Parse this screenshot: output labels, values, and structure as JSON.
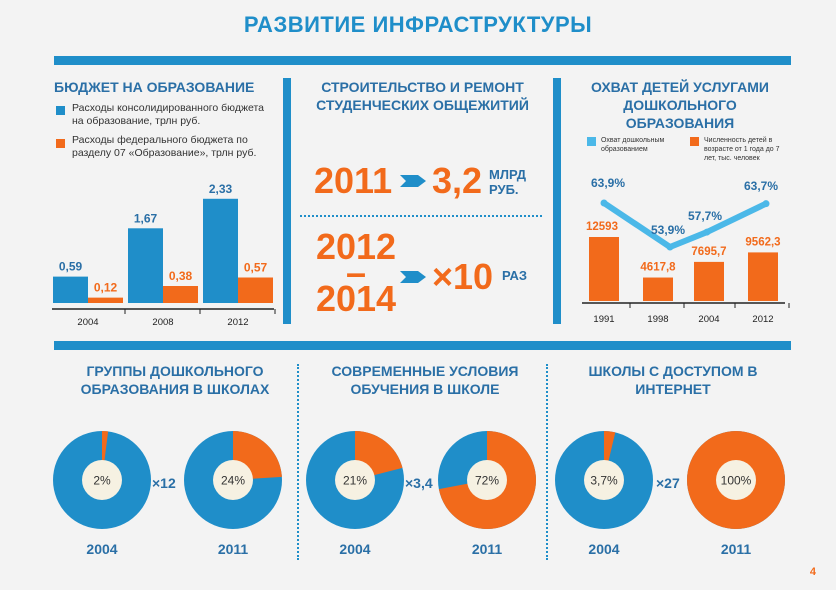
{
  "title": "РАЗВИТИЕ ИНФРАСТРУКТУРЫ",
  "colors": {
    "blue": "#1f8ec9",
    "orange": "#f26a1b",
    "dark_blue": "#2a6fa6"
  },
  "budget": {
    "heading": "БЮДЖЕТ НА ОБРАЗОВАНИЕ",
    "legend": [
      "Расходы консолидированного бюджета на образование, трлн руб.",
      "Расходы федерального бюджета по разделу 07 «Образование», трлн руб."
    ]
  },
  "dorms": {
    "heading": "СТРОИТЕЛЬСТВО И РЕМОНТ СТУДЕНЧЕСКИХ ОБЩЕЖИТИЙ",
    "row1": {
      "year": "2011",
      "value": "3,2",
      "unit_line1": "МЛРД",
      "unit_line2": "РУБ."
    },
    "row2": {
      "year_line1": "2012",
      "dash": "–",
      "year_line2": "2014",
      "value": "×10",
      "unit": "РАЗ"
    }
  },
  "preschool": {
    "heading": "ОХВАТ ДЕТЕЙ УСЛУГАМИ ДОШКОЛЬНОГО ОБРАЗОВАНИЯ",
    "legend": [
      "Охват дошкольным образованием",
      "Численность детей в возрасте от 1 года до 7 лет, тыс. человек"
    ]
  },
  "groups": {
    "heading": "ГРУППЫ ДОШКОЛЬНОГО ОБРАЗОВАНИЯ В ШКОЛАХ",
    "multiplier": "×12"
  },
  "conditions": {
    "heading": "СОВРЕМЕННЫЕ УСЛОВИЯ ОБУЧЕНИЯ В ШКОЛЕ",
    "multiplier": "×3,4"
  },
  "internet": {
    "heading": "ШКОЛЫ С ДОСТУПОМ В ИНТЕРНЕТ",
    "multiplier": "×27"
  },
  "page_number": "4",
  "chart_data": [
    {
      "type": "bar",
      "id": "budget",
      "categories": [
        "2004",
        "2008",
        "2012"
      ],
      "series": [
        {
          "name": "Расходы консолидированного бюджета на образование, трлн руб.",
          "values": [
            0.59,
            1.67,
            2.33
          ],
          "labels": [
            "0,59",
            "1,67",
            "2,33"
          ],
          "color": "#1f8ec9"
        },
        {
          "name": "Расходы федерального бюджета по разделу 07 «Образование», трлн руб.",
          "values": [
            0.12,
            0.38,
            0.57
          ],
          "labels": [
            "0,12",
            "0,38",
            "0,57"
          ],
          "color": "#f26a1b"
        }
      ],
      "ylim": [
        0,
        2.5
      ]
    },
    {
      "type": "bar",
      "id": "preschool-children",
      "categories": [
        "1991",
        "1998",
        "2004",
        "2012"
      ],
      "series": [
        {
          "name": "Численность детей в возрасте от 1 года до 7 лет, тыс. человек",
          "values": [
            12593,
            4617.8,
            7695.7,
            9562.3
          ],
          "labels": [
            "12593",
            "4617,8",
            "7695,7",
            "9562,3"
          ],
          "color": "#f26a1b"
        }
      ]
    },
    {
      "type": "line",
      "id": "preschool-coverage",
      "categories": [
        "1991",
        "1998",
        "2004",
        "2012"
      ],
      "series": [
        {
          "name": "Охват дошкольным образованием",
          "values": [
            63.9,
            53.9,
            57.7,
            63.7
          ],
          "labels": [
            "63,9%",
            "53,9%",
            "57,7%",
            "63,7%"
          ],
          "color": "#1f8ec9"
        }
      ]
    },
    {
      "type": "pie",
      "id": "groups",
      "charts": [
        {
          "year": "2004",
          "value": 2,
          "label": "2%"
        },
        {
          "year": "2011",
          "value": 24,
          "label": "24%"
        }
      ]
    },
    {
      "type": "pie",
      "id": "conditions",
      "charts": [
        {
          "year": "2004",
          "value": 21,
          "label": "21%"
        },
        {
          "year": "2011",
          "value": 72,
          "label": "72%"
        }
      ]
    },
    {
      "type": "pie",
      "id": "internet",
      "charts": [
        {
          "year": "2004",
          "value": 3.7,
          "label": "3,7%"
        },
        {
          "year": "2011",
          "value": 100,
          "label": "100%"
        }
      ]
    }
  ]
}
